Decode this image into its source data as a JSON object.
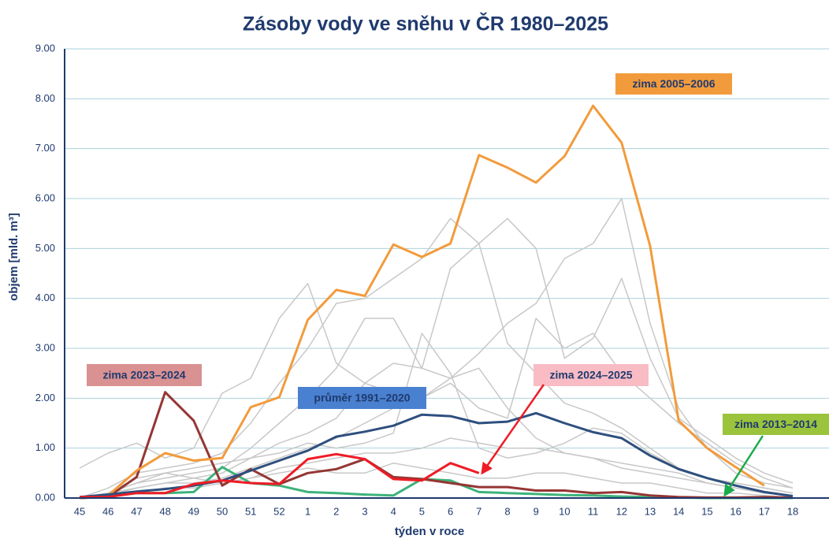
{
  "chart_data": {
    "type": "line",
    "title": "Zásoby vody ve sněhu v ČR 1980–2025",
    "ylabel": "objem [mld. m³]",
    "xlabel": "týden v roce",
    "categories": [
      "45",
      "46",
      "47",
      "48",
      "49",
      "50",
      "51",
      "52",
      "1",
      "2",
      "3",
      "4",
      "5",
      "6",
      "7",
      "8",
      "9",
      "10",
      "11",
      "12",
      "13",
      "14",
      "15",
      "16",
      "17",
      "18"
    ],
    "ylim": [
      0,
      9
    ],
    "yticks": [
      {
        "value": 0,
        "label": "0.00"
      },
      {
        "value": 1,
        "label": "1.00"
      },
      {
        "value": 2,
        "label": "2.00"
      },
      {
        "value": 3,
        "label": "3.00"
      },
      {
        "value": 4,
        "label": "4.00"
      },
      {
        "value": 5,
        "label": "5.00"
      },
      {
        "value": 6,
        "label": "6.00"
      },
      {
        "value": 7,
        "label": "7.00"
      },
      {
        "value": 8,
        "label": "8.00"
      },
      {
        "value": 9,
        "label": "9.00"
      }
    ],
    "grid": true,
    "series": [
      {
        "color": "#c8c8c8",
        "values": [
          0.6,
          0.9,
          1.1,
          0.8,
          1.0,
          2.1,
          2.4,
          3.6,
          4.3,
          2.7,
          2.3,
          2.1,
          2.0,
          2.4,
          2.6,
          1.8,
          1.2,
          0.9,
          0.8,
          0.6,
          0.5,
          0.4,
          0.3,
          0.2,
          0.1,
          0.05
        ]
      },
      {
        "color": "#c8c8c8",
        "values": [
          0,
          0.2,
          0.5,
          0.6,
          0.7,
          0.9,
          1.5,
          2.3,
          3.0,
          3.9,
          4.0,
          4.4,
          4.8,
          5.6,
          5.1,
          3.1,
          2.5,
          1.9,
          1.7,
          1.4,
          1.0,
          0.6,
          0.4,
          0.3,
          0.2,
          0.1
        ]
      },
      {
        "color": "#c8c8c8",
        "values": [
          0,
          0.1,
          0.3,
          0.4,
          0.5,
          0.6,
          1.0,
          1.5,
          2.0,
          2.6,
          3.6,
          3.6,
          2.6,
          2.4,
          2.9,
          3.5,
          3.9,
          4.8,
          5.1,
          6.0,
          3.5,
          1.8,
          1.0,
          0.5,
          0.3,
          0.2
        ]
      },
      {
        "color": "#c8c8c8",
        "values": [
          0,
          0.05,
          0.2,
          0.3,
          0.4,
          0.5,
          0.8,
          1.1,
          1.3,
          1.6,
          2.3,
          2.7,
          2.6,
          4.6,
          5.1,
          5.6,
          5.0,
          2.8,
          3.2,
          4.4,
          2.8,
          1.6,
          1.2,
          0.8,
          0.5,
          0.3
        ]
      },
      {
        "color": "#c8c8c8",
        "values": [
          0,
          0.1,
          0.2,
          0.3,
          0.3,
          0.4,
          0.6,
          0.8,
          1.0,
          1.2,
          1.5,
          1.8,
          2.0,
          2.3,
          1.8,
          1.6,
          3.6,
          3.0,
          3.3,
          2.5,
          2.0,
          1.5,
          1.1,
          0.7,
          0.4,
          0.2
        ]
      },
      {
        "color": "#c8c8c8",
        "values": [
          0,
          0.1,
          0.3,
          0.5,
          0.6,
          0.7,
          0.8,
          0.9,
          1.1,
          1.0,
          1.1,
          1.3,
          3.3,
          2.5,
          1.0,
          0.8,
          0.9,
          1.1,
          1.4,
          1.3,
          0.9,
          0.6,
          0.4,
          0.3,
          0.2,
          0.1
        ]
      },
      {
        "color": "#c8c8c8",
        "values": [
          0,
          0.05,
          0.1,
          0.2,
          0.2,
          0.3,
          0.4,
          0.6,
          0.7,
          0.8,
          0.9,
          0.9,
          1.0,
          1.2,
          1.1,
          1.0,
          1.0,
          0.9,
          0.8,
          0.7,
          0.6,
          0.5,
          0.3,
          0.2,
          0.1,
          0.05
        ]
      },
      {
        "color": "#c8c8c8",
        "values": [
          0,
          0.1,
          0.4,
          0.5,
          0.4,
          0.3,
          0.4,
          0.5,
          0.6,
          0.5,
          0.5,
          0.7,
          0.6,
          0.5,
          0.4,
          0.4,
          0.5,
          0.5,
          0.4,
          0.3,
          0.3,
          0.2,
          0.1,
          0.1,
          0.05,
          0
        ]
      },
      {
        "name": "zima 2013–2014",
        "color": "#3db37a",
        "values": [
          0,
          0.03,
          0.1,
          0.1,
          0.12,
          0.62,
          0.3,
          0.25,
          0.12,
          0.1,
          0.07,
          0.05,
          0.38,
          0.35,
          0.12,
          0.1,
          0.08,
          0.06,
          0.05,
          0.03,
          0.02,
          0.01,
          0,
          0,
          0,
          0
        ]
      },
      {
        "name": "zima 2023–2024",
        "color": "#943634",
        "values": [
          0,
          0.02,
          0.42,
          2.12,
          1.55,
          0.25,
          0.58,
          0.28,
          0.5,
          0.58,
          0.78,
          0.42,
          0.38,
          0.3,
          0.22,
          0.22,
          0.15,
          0.15,
          0.1,
          0.12,
          0.05,
          0.02,
          0.01,
          0.01,
          0.02,
          0.01
        ]
      },
      {
        "name": "zima 2005–2006",
        "color": "#f29b3c",
        "values": [
          0,
          0.05,
          0.55,
          0.9,
          0.75,
          0.8,
          1.82,
          2.02,
          3.57,
          4.17,
          4.05,
          5.08,
          4.83,
          5.1,
          6.87,
          6.62,
          6.32,
          6.85,
          7.86,
          7.12,
          5.05,
          1.55,
          1.0,
          0.62,
          0.25,
          null
        ]
      },
      {
        "name": "průměr 1991–2020",
        "color": "#2e4f7e",
        "values": [
          0.02,
          0.07,
          0.13,
          0.18,
          0.25,
          0.35,
          0.55,
          0.75,
          0.95,
          1.23,
          1.33,
          1.45,
          1.67,
          1.64,
          1.5,
          1.53,
          1.7,
          1.5,
          1.32,
          1.2,
          0.85,
          0.58,
          0.4,
          0.25,
          0.12,
          0.04
        ]
      },
      {
        "name": "zima 2024–2025",
        "color": "#ee1c25",
        "values": [
          0.02,
          0.02,
          0.1,
          0.1,
          0.28,
          0.35,
          0.3,
          0.28,
          0.78,
          0.88,
          0.78,
          0.38,
          0.35,
          0.7,
          0.5,
          null,
          null,
          null,
          null,
          null,
          null,
          null,
          null,
          null,
          null,
          null
        ]
      }
    ]
  }
}
